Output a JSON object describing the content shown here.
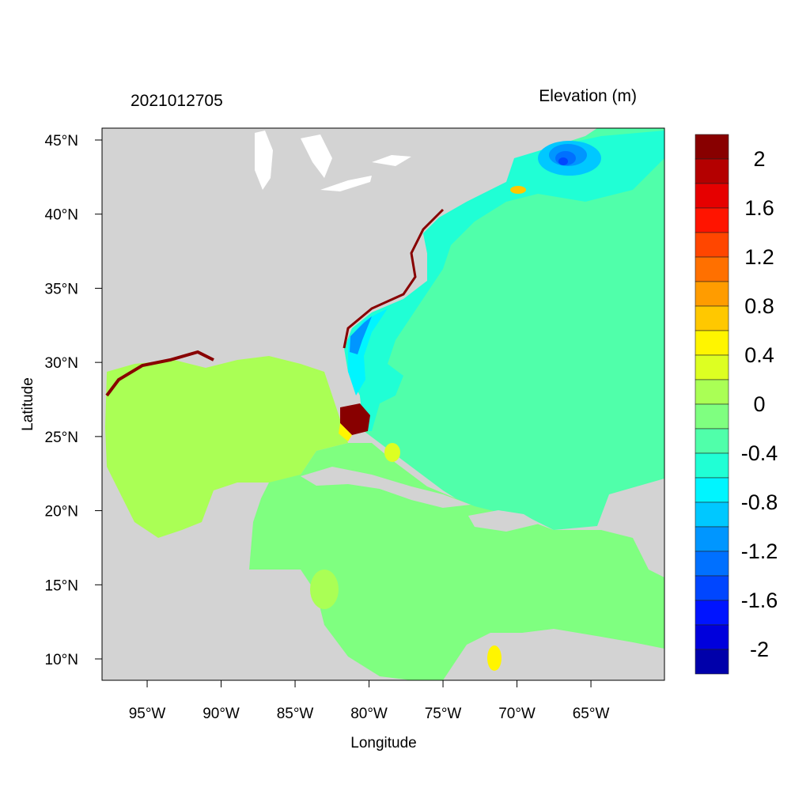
{
  "title_left": "2021012705",
  "title_right": "Elevation (m)",
  "xlabel": "Longitude",
  "ylabel": "Latitude",
  "map": {
    "type": "filled-contour map",
    "lon_range": [
      -98.05,
      -60.03
    ],
    "lat_range": [
      8.56,
      45.8
    ],
    "land_color": "#d3d3d3",
    "lake_color": "#ffffff",
    "xticks": [
      {
        "value": -95,
        "label": "95°W"
      },
      {
        "value": -90,
        "label": "90°W"
      },
      {
        "value": -85,
        "label": "85°W"
      },
      {
        "value": -80,
        "label": "80°W"
      },
      {
        "value": -75,
        "label": "75°W"
      },
      {
        "value": -70,
        "label": "70°W"
      },
      {
        "value": -65,
        "label": "65°W"
      }
    ],
    "yticks": [
      {
        "value": 10,
        "label": "10°N"
      },
      {
        "value": 15,
        "label": "15°N"
      },
      {
        "value": 20,
        "label": "20°N"
      },
      {
        "value": 25,
        "label": "25°N"
      },
      {
        "value": 30,
        "label": "30°N"
      },
      {
        "value": 35,
        "label": "35°N"
      },
      {
        "value": 40,
        "label": "40°N"
      },
      {
        "value": 45,
        "label": "45°N"
      }
    ]
  },
  "colorbar": {
    "range": [
      -2.2,
      2.2
    ],
    "colors_top_to_bottom": [
      "#880000",
      "#b40000",
      "#e60000",
      "#ff1400",
      "#ff4600",
      "#ff7000",
      "#ff9c00",
      "#ffc800",
      "#fff500",
      "#ddff22",
      "#aaff55",
      "#7fff80",
      "#50ffaa",
      "#20ffd5",
      "#00f5ff",
      "#00c8ff",
      "#0096ff",
      "#0070ff",
      "#0046ff",
      "#0014ff",
      "#0000dc",
      "#0000aa"
    ],
    "labels": [
      {
        "value": 2,
        "label": "2"
      },
      {
        "value": 1.6,
        "label": "1.6"
      },
      {
        "value": 1.2,
        "label": "1.2"
      },
      {
        "value": 0.8,
        "label": "0.8"
      },
      {
        "value": 0.4,
        "label": "0.4"
      },
      {
        "value": 0,
        "label": "0"
      },
      {
        "value": -0.4,
        "label": "-0.4"
      },
      {
        "value": -0.8,
        "label": "-0.8"
      },
      {
        "value": -1.2,
        "label": "-1.2"
      },
      {
        "value": -1.6,
        "label": "-1.6"
      },
      {
        "value": -2,
        "label": "-2"
      }
    ]
  }
}
